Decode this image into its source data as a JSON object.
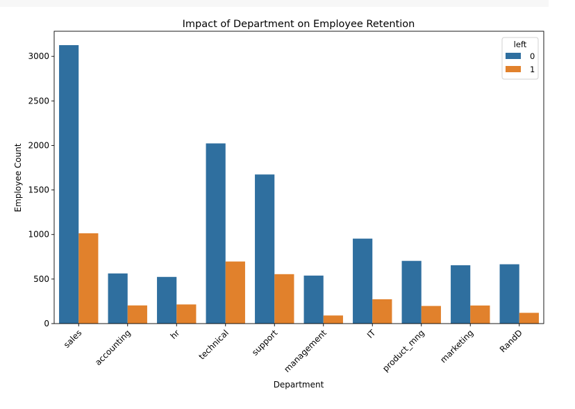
{
  "chart_data": {
    "type": "bar",
    "title": "Impact of Department on Employee Retention",
    "xlabel": "Department",
    "ylabel": "Employee Count",
    "categories": [
      "sales",
      "accounting",
      "hr",
      "technical",
      "support",
      "management",
      "IT",
      "product_mng",
      "marketing",
      "RandD"
    ],
    "series": [
      {
        "name": "0",
        "color": "#2f6f9f",
        "values": [
          3126,
          563,
          524,
          2023,
          1674,
          539,
          954,
          704,
          655,
          666
        ]
      },
      {
        "name": "1",
        "color": "#e1812c",
        "values": [
          1014,
          204,
          215,
          697,
          555,
          91,
          273,
          198,
          203,
          121
        ]
      }
    ],
    "ylim": [
      0,
      3282
    ],
    "yticks": [
      0,
      500,
      1000,
      1500,
      2000,
      2500,
      3000
    ],
    "legend": {
      "title": "left",
      "placement": "top-right"
    },
    "grid": false
  }
}
